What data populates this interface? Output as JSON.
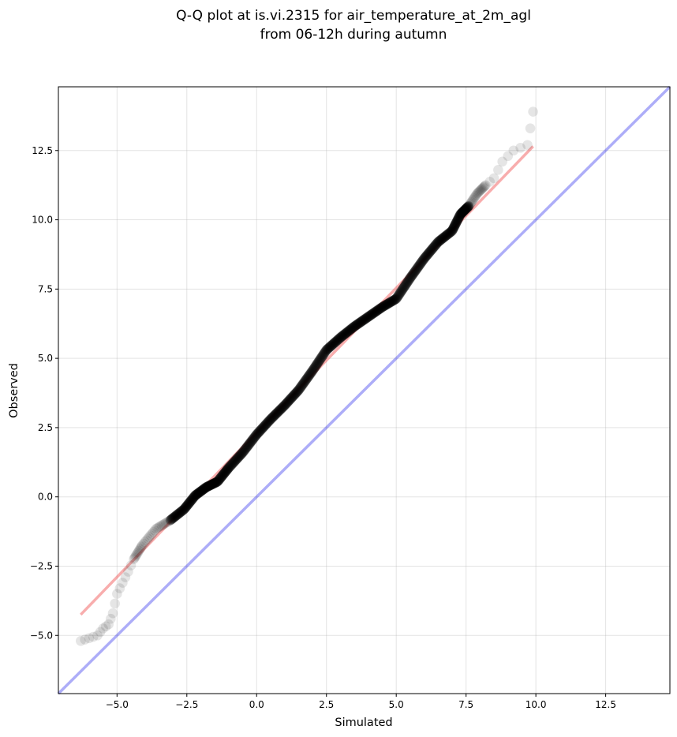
{
  "chart_data": {
    "type": "scatter",
    "title_line1": "Q-Q plot at is.vi.2315 for air_temperature_at_2m_agl",
    "title_line2": "from 06-12h during autumn",
    "xlabel": "Simulated",
    "ylabel": "Observed",
    "xlim": [
      -7.1,
      14.8
    ],
    "ylim": [
      -7.1,
      14.8
    ],
    "x_ticks": [
      -5.0,
      -2.5,
      0.0,
      2.5,
      5.0,
      7.5,
      10.0,
      12.5
    ],
    "y_ticks": [
      -5.0,
      -2.5,
      0.0,
      2.5,
      5.0,
      7.5,
      10.0,
      12.5
    ],
    "x_tick_labels": [
      "−5.0",
      "−2.5",
      "0.0",
      "2.5",
      "5.0",
      "7.5",
      "10.0",
      "12.5"
    ],
    "y_tick_labels": [
      "−5.0",
      "−2.5",
      "0.0",
      "2.5",
      "5.0",
      "7.5",
      "10.0",
      "12.5"
    ],
    "grid": true,
    "point_color": "#000000",
    "fit_line_color": "#ee3333",
    "identity_line_color": "#3333ee",
    "fit_line": {
      "x": [
        -6.3,
        9.9
      ],
      "y": [
        -4.25,
        12.65
      ]
    },
    "identity_line": {
      "x": [
        -7.1,
        14.8
      ],
      "y": [
        -7.1,
        14.8
      ]
    },
    "quantile_anchors": [
      [
        -6.3,
        -5.2
      ],
      [
        -6.0,
        -5.1
      ],
      [
        -5.7,
        -5.0
      ],
      [
        -5.5,
        -4.75
      ],
      [
        -5.3,
        -4.6
      ],
      [
        -5.15,
        -4.2
      ],
      [
        -5.0,
        -3.5
      ],
      [
        -4.8,
        -3.1
      ],
      [
        -4.6,
        -2.7
      ],
      [
        -4.4,
        -2.25
      ],
      [
        -4.1,
        -1.75
      ],
      [
        -3.6,
        -1.15
      ],
      [
        -3.1,
        -0.85
      ],
      [
        -2.6,
        -0.45
      ],
      [
        -2.2,
        0.05
      ],
      [
        -1.8,
        0.35
      ],
      [
        -1.4,
        0.55
      ],
      [
        -1.0,
        1.05
      ],
      [
        -0.5,
        1.6
      ],
      [
        0.0,
        2.25
      ],
      [
        0.5,
        2.8
      ],
      [
        1.0,
        3.3
      ],
      [
        1.5,
        3.85
      ],
      [
        2.0,
        4.55
      ],
      [
        2.5,
        5.3
      ],
      [
        3.0,
        5.75
      ],
      [
        3.5,
        6.15
      ],
      [
        4.0,
        6.5
      ],
      [
        4.5,
        6.85
      ],
      [
        5.0,
        7.15
      ],
      [
        5.5,
        7.9
      ],
      [
        6.0,
        8.6
      ],
      [
        6.5,
        9.2
      ],
      [
        7.0,
        9.6
      ],
      [
        7.3,
        10.2
      ],
      [
        7.6,
        10.5
      ],
      [
        7.9,
        10.95
      ],
      [
        8.2,
        11.25
      ],
      [
        8.5,
        11.5
      ],
      [
        8.8,
        12.1
      ],
      [
        9.2,
        12.5
      ],
      [
        9.7,
        12.7
      ],
      [
        9.9,
        13.9
      ]
    ]
  }
}
